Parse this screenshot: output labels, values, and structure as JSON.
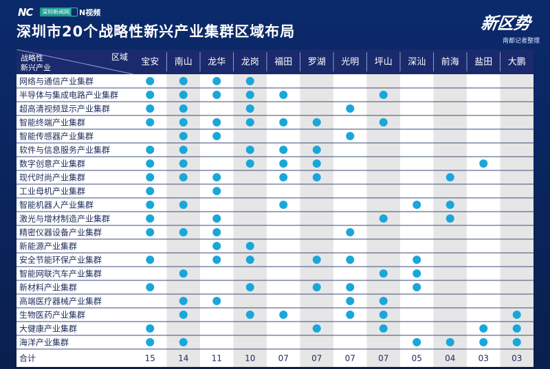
{
  "header": {
    "logo_main": "NC",
    "logo_badge": "深圳新闻网",
    "logo_video": "N视频",
    "title": "深圳市20个战略性新兴产业集群区域布局",
    "brand": "新区势",
    "credit": "南都记者整理"
  },
  "chart_data": {
    "type": "table",
    "corner_top_label": "区域",
    "corner_left_line1": "战略性",
    "corner_left_line2": "新兴产业",
    "columns": [
      "宝安",
      "南山",
      "龙华",
      "龙岗",
      "福田",
      "罗湖",
      "光明",
      "坪山",
      "深汕",
      "前海",
      "盐田",
      "大鹏"
    ],
    "rows": [
      {
        "name": "网络与通信产业集群",
        "cells": [
          1,
          1,
          1,
          1,
          0,
          0,
          0,
          0,
          0,
          0,
          0,
          0
        ]
      },
      {
        "name": "半导体与集成电路产业集群",
        "cells": [
          1,
          1,
          1,
          1,
          1,
          0,
          0,
          1,
          0,
          0,
          0,
          0
        ]
      },
      {
        "name": "超高清视频显示产业集群",
        "cells": [
          1,
          1,
          0,
          1,
          0,
          0,
          1,
          0,
          0,
          0,
          0,
          0
        ]
      },
      {
        "name": "智能终端产业集群",
        "cells": [
          1,
          1,
          1,
          1,
          1,
          1,
          0,
          1,
          0,
          0,
          0,
          0
        ]
      },
      {
        "name": "智能传感器产业集群",
        "cells": [
          0,
          1,
          1,
          0,
          0,
          0,
          1,
          0,
          0,
          0,
          0,
          0
        ]
      },
      {
        "name": "软件与信息服务产业集群",
        "cells": [
          1,
          1,
          0,
          1,
          1,
          1,
          0,
          0,
          0,
          0,
          0,
          0
        ]
      },
      {
        "name": "数字创意产业集群",
        "cells": [
          1,
          1,
          0,
          1,
          1,
          1,
          0,
          0,
          0,
          0,
          1,
          0
        ]
      },
      {
        "name": "现代时尚产业集群",
        "cells": [
          1,
          1,
          1,
          0,
          1,
          1,
          0,
          0,
          0,
          1,
          0,
          0
        ]
      },
      {
        "name": "工业母机产业集群",
        "cells": [
          1,
          0,
          1,
          0,
          0,
          0,
          0,
          0,
          0,
          0,
          0,
          0
        ]
      },
      {
        "name": "智能机器人产业集群",
        "cells": [
          1,
          1,
          0,
          0,
          1,
          0,
          0,
          0,
          1,
          1,
          0,
          0
        ]
      },
      {
        "name": "激光与增材制造产业集群",
        "cells": [
          1,
          0,
          1,
          0,
          0,
          0,
          0,
          1,
          0,
          1,
          0,
          0
        ]
      },
      {
        "name": "精密仪器设备产业集群",
        "cells": [
          1,
          1,
          1,
          0,
          0,
          0,
          1,
          0,
          0,
          0,
          0,
          0
        ]
      },
      {
        "name": "新能源产业集群",
        "cells": [
          0,
          0,
          1,
          1,
          0,
          0,
          0,
          0,
          0,
          0,
          0,
          0
        ]
      },
      {
        "name": "安全节能环保产业集群",
        "cells": [
          1,
          0,
          1,
          1,
          0,
          1,
          1,
          0,
          1,
          0,
          0,
          0
        ]
      },
      {
        "name": "智能网联汽车产业集群",
        "cells": [
          0,
          1,
          0,
          0,
          0,
          0,
          0,
          1,
          1,
          0,
          0,
          0
        ]
      },
      {
        "name": "新材料产业集群",
        "cells": [
          1,
          0,
          0,
          1,
          0,
          1,
          1,
          0,
          1,
          0,
          0,
          0
        ]
      },
      {
        "name": "高端医疗器械产业集群",
        "cells": [
          0,
          1,
          1,
          0,
          0,
          0,
          1,
          1,
          0,
          0,
          0,
          0
        ]
      },
      {
        "name": "生物医药产业集群",
        "cells": [
          0,
          1,
          0,
          1,
          1,
          0,
          1,
          1,
          0,
          0,
          0,
          1
        ]
      },
      {
        "name": "大健康产业集群",
        "cells": [
          1,
          0,
          0,
          0,
          0,
          1,
          0,
          1,
          0,
          0,
          1,
          1
        ]
      },
      {
        "name": "海洋产业集群",
        "cells": [
          1,
          1,
          0,
          0,
          0,
          0,
          0,
          0,
          1,
          1,
          1,
          1
        ]
      }
    ],
    "total_label": "合计",
    "totals": [
      "15",
      "14",
      "11",
      "10",
      "07",
      "07",
      "07",
      "07",
      "05",
      "04",
      "03",
      "03"
    ],
    "dot_color": "#19a7d9",
    "header_color": "#1a2a6c",
    "shade_color": "#e6e6e6",
    "line_color": "#3a4a7c"
  }
}
